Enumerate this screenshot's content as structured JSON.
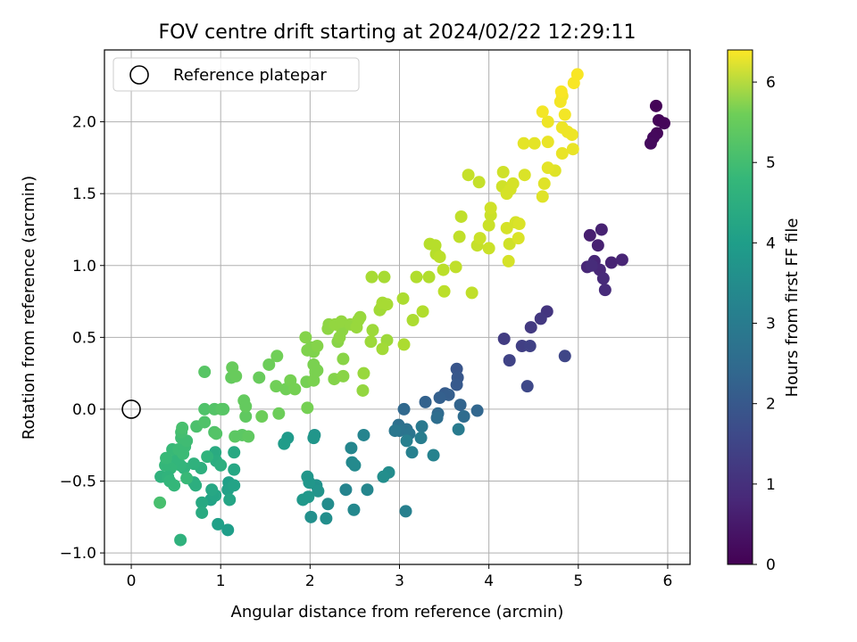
{
  "chart_data": {
    "type": "scatter",
    "title": "FOV centre drift starting at 2024/02/22 12:29:11",
    "xlabel": "Angular distance from reference (arcmin)",
    "ylabel": "Rotation from reference (arcmin)",
    "xlim": [
      -0.3,
      6.25
    ],
    "ylim": [
      -1.08,
      2.5
    ],
    "xticks": [
      0,
      1,
      2,
      3,
      4,
      5,
      6
    ],
    "xtick_labels": [
      "0",
      "1",
      "2",
      "3",
      "4",
      "5",
      "6"
    ],
    "yticks": [
      -1.0,
      -0.5,
      0.0,
      0.5,
      1.0,
      1.5,
      2.0
    ],
    "ytick_labels": [
      "−1.0",
      "−0.5",
      "0.0",
      "0.5",
      "1.0",
      "1.5",
      "2.0"
    ],
    "grid": true,
    "legend": {
      "position": "upper-left",
      "label": "Reference platepar"
    },
    "reference_point": {
      "x": 0,
      "y": 0
    },
    "colorbar": {
      "label": "Hours from first FF file",
      "range": [
        0,
        6.4
      ],
      "ticks": [
        0,
        1,
        2,
        3,
        4,
        5,
        6
      ],
      "tick_labels": [
        "0",
        "1",
        "2",
        "3",
        "4",
        "5",
        "6"
      ],
      "colormap": "viridis"
    },
    "points": [
      {
        "x": 5.87,
        "y": 2.11,
        "c": 0.05
      },
      {
        "x": 5.9,
        "y": 2.01,
        "c": 0.08
      },
      {
        "x": 5.96,
        "y": 1.99,
        "c": 0.1
      },
      {
        "x": 5.88,
        "y": 1.92,
        "c": 0.12
      },
      {
        "x": 5.84,
        "y": 1.89,
        "c": 0.15
      },
      {
        "x": 5.81,
        "y": 1.85,
        "c": 0.18
      },
      {
        "x": 5.13,
        "y": 1.21,
        "c": 0.55
      },
      {
        "x": 5.26,
        "y": 1.25,
        "c": 0.6
      },
      {
        "x": 5.22,
        "y": 1.14,
        "c": 0.58
      },
      {
        "x": 5.37,
        "y": 1.02,
        "c": 0.62
      },
      {
        "x": 5.49,
        "y": 1.04,
        "c": 0.65
      },
      {
        "x": 5.18,
        "y": 1.03,
        "c": 0.68
      },
      {
        "x": 5.1,
        "y": 0.99,
        "c": 0.7
      },
      {
        "x": 5.24,
        "y": 0.97,
        "c": 0.72
      },
      {
        "x": 5.28,
        "y": 0.91,
        "c": 0.75
      },
      {
        "x": 5.3,
        "y": 0.83,
        "c": 0.78
      },
      {
        "x": 5.15,
        "y": 1.0,
        "c": 0.8
      },
      {
        "x": 4.65,
        "y": 0.68,
        "c": 1.0
      },
      {
        "x": 4.58,
        "y": 0.63,
        "c": 1.05
      },
      {
        "x": 4.47,
        "y": 0.57,
        "c": 1.1
      },
      {
        "x": 4.17,
        "y": 0.49,
        "c": 1.15
      },
      {
        "x": 4.37,
        "y": 0.44,
        "c": 1.2
      },
      {
        "x": 4.46,
        "y": 0.44,
        "c": 1.25
      },
      {
        "x": 4.23,
        "y": 0.34,
        "c": 1.3
      },
      {
        "x": 4.85,
        "y": 0.37,
        "c": 1.35
      },
      {
        "x": 4.43,
        "y": 0.16,
        "c": 1.4
      },
      {
        "x": 3.64,
        "y": 0.28,
        "c": 1.7
      },
      {
        "x": 3.65,
        "y": 0.22,
        "c": 1.75
      },
      {
        "x": 3.64,
        "y": 0.17,
        "c": 1.8
      },
      {
        "x": 3.51,
        "y": 0.11,
        "c": 1.85
      },
      {
        "x": 3.55,
        "y": 0.1,
        "c": 1.9
      },
      {
        "x": 3.45,
        "y": 0.08,
        "c": 1.95
      },
      {
        "x": 3.29,
        "y": 0.05,
        "c": 2.0
      },
      {
        "x": 3.68,
        "y": 0.03,
        "c": 2.05
      },
      {
        "x": 3.87,
        "y": -0.01,
        "c": 2.1
      },
      {
        "x": 3.05,
        "y": 0.0,
        "c": 2.15
      },
      {
        "x": 3.43,
        "y": -0.03,
        "c": 2.2
      },
      {
        "x": 3.72,
        "y": -0.05,
        "c": 2.25
      },
      {
        "x": 3.42,
        "y": -0.06,
        "c": 2.3
      },
      {
        "x": 2.99,
        "y": -0.11,
        "c": 2.35
      },
      {
        "x": 3.08,
        "y": -0.14,
        "c": 2.4
      },
      {
        "x": 3.0,
        "y": -0.15,
        "c": 2.45
      },
      {
        "x": 3.11,
        "y": -0.17,
        "c": 2.5
      },
      {
        "x": 2.95,
        "y": -0.15,
        "c": 2.55
      },
      {
        "x": 3.25,
        "y": -0.12,
        "c": 2.6
      },
      {
        "x": 3.66,
        "y": -0.14,
        "c": 2.65
      },
      {
        "x": 3.24,
        "y": -0.2,
        "c": 2.7
      },
      {
        "x": 3.08,
        "y": -0.22,
        "c": 2.75
      },
      {
        "x": 3.14,
        "y": -0.3,
        "c": 2.8
      },
      {
        "x": 3.38,
        "y": -0.32,
        "c": 2.85
      },
      {
        "x": 2.6,
        "y": -0.18,
        "c": 2.9
      },
      {
        "x": 2.46,
        "y": -0.27,
        "c": 2.95
      },
      {
        "x": 2.47,
        "y": -0.37,
        "c": 3.0
      },
      {
        "x": 2.5,
        "y": -0.39,
        "c": 3.05
      },
      {
        "x": 2.88,
        "y": -0.44,
        "c": 3.1
      },
      {
        "x": 2.82,
        "y": -0.47,
        "c": 3.15
      },
      {
        "x": 2.4,
        "y": -0.56,
        "c": 2.9
      },
      {
        "x": 2.64,
        "y": -0.56,
        "c": 2.95
      },
      {
        "x": 2.49,
        "y": -0.7,
        "c": 3.0
      },
      {
        "x": 3.07,
        "y": -0.71,
        "c": 2.8
      },
      {
        "x": 2.2,
        "y": -0.66,
        "c": 3.1
      },
      {
        "x": 2.18,
        "y": -0.76,
        "c": 3.15
      },
      {
        "x": 2.01,
        "y": -0.75,
        "c": 3.2
      },
      {
        "x": 2.07,
        "y": -0.53,
        "c": 3.25
      },
      {
        "x": 2.09,
        "y": -0.57,
        "c": 3.3
      },
      {
        "x": 1.97,
        "y": -0.47,
        "c": 3.35
      },
      {
        "x": 1.99,
        "y": -0.51,
        "c": 3.35
      },
      {
        "x": 1.98,
        "y": -0.61,
        "c": 3.4
      },
      {
        "x": 1.92,
        "y": -0.63,
        "c": 3.4
      },
      {
        "x": 2.05,
        "y": -0.18,
        "c": 3.3
      },
      {
        "x": 2.04,
        "y": -0.2,
        "c": 3.35
      },
      {
        "x": 1.75,
        "y": -0.2,
        "c": 3.45
      },
      {
        "x": 1.71,
        "y": -0.24,
        "c": 3.5
      },
      {
        "x": 1.09,
        "y": -0.51,
        "c": 3.6
      },
      {
        "x": 1.08,
        "y": -0.56,
        "c": 3.65
      },
      {
        "x": 1.15,
        "y": -0.53,
        "c": 3.7
      },
      {
        "x": 1.1,
        "y": -0.63,
        "c": 3.75
      },
      {
        "x": 1.15,
        "y": -0.42,
        "c": 3.8
      },
      {
        "x": 1.15,
        "y": -0.3,
        "c": 3.85
      },
      {
        "x": 1.08,
        "y": -0.84,
        "c": 3.55
      },
      {
        "x": 0.97,
        "y": -0.8,
        "c": 3.6
      },
      {
        "x": 0.89,
        "y": -0.63,
        "c": 3.7
      },
      {
        "x": 0.94,
        "y": -0.6,
        "c": 3.75
      },
      {
        "x": 0.9,
        "y": -0.56,
        "c": 3.8
      },
      {
        "x": 0.79,
        "y": -0.65,
        "c": 3.85
      },
      {
        "x": 0.79,
        "y": -0.72,
        "c": 3.9
      },
      {
        "x": 0.7,
        "y": -0.51,
        "c": 3.95
      },
      {
        "x": 0.72,
        "y": -0.53,
        "c": 4.0
      },
      {
        "x": 0.94,
        "y": -0.3,
        "c": 3.9
      },
      {
        "x": 0.95,
        "y": -0.36,
        "c": 3.95
      },
      {
        "x": 1.0,
        "y": -0.39,
        "c": 4.0
      },
      {
        "x": 0.78,
        "y": -0.41,
        "c": 4.05
      },
      {
        "x": 0.7,
        "y": -0.38,
        "c": 4.1
      },
      {
        "x": 0.85,
        "y": -0.33,
        "c": 4.15
      },
      {
        "x": 0.59,
        "y": -0.41,
        "c": 4.15
      },
      {
        "x": 0.55,
        "y": -0.39,
        "c": 4.2
      },
      {
        "x": 0.51,
        "y": -0.35,
        "c": 4.2
      },
      {
        "x": 0.44,
        "y": -0.41,
        "c": 4.25
      },
      {
        "x": 0.38,
        "y": -0.39,
        "c": 4.25
      },
      {
        "x": 0.39,
        "y": -0.34,
        "c": 4.3
      },
      {
        "x": 0.46,
        "y": -0.28,
        "c": 4.3
      },
      {
        "x": 0.53,
        "y": -0.28,
        "c": 4.35
      },
      {
        "x": 0.58,
        "y": -0.31,
        "c": 4.35
      },
      {
        "x": 0.6,
        "y": -0.26,
        "c": 4.35
      },
      {
        "x": 0.56,
        "y": -0.2,
        "c": 4.4
      },
      {
        "x": 0.62,
        "y": -0.22,
        "c": 4.4
      },
      {
        "x": 0.56,
        "y": -0.16,
        "c": 4.45
      },
      {
        "x": 0.57,
        "y": -0.13,
        "c": 4.5
      },
      {
        "x": 0.33,
        "y": -0.47,
        "c": 4.1
      },
      {
        "x": 0.41,
        "y": -0.47,
        "c": 4.15
      },
      {
        "x": 0.43,
        "y": -0.5,
        "c": 4.2
      },
      {
        "x": 0.48,
        "y": -0.53,
        "c": 4.25
      },
      {
        "x": 0.62,
        "y": -0.48,
        "c": 4.3
      },
      {
        "x": 0.55,
        "y": -0.91,
        "c": 4.1
      },
      {
        "x": 0.32,
        "y": -0.65,
        "c": 4.5
      },
      {
        "x": 0.73,
        "y": -0.12,
        "c": 4.55
      },
      {
        "x": 0.82,
        "y": -0.09,
        "c": 4.6
      },
      {
        "x": 0.93,
        "y": -0.16,
        "c": 4.6
      },
      {
        "x": 0.95,
        "y": -0.17,
        "c": 4.65
      },
      {
        "x": 0.82,
        "y": 0.0,
        "c": 4.6
      },
      {
        "x": 0.93,
        "y": 0.0,
        "c": 4.65
      },
      {
        "x": 1.01,
        "y": 0.0,
        "c": 4.7
      },
      {
        "x": 1.03,
        "y": 0.0,
        "c": 4.7
      },
      {
        "x": 0.82,
        "y": 0.26,
        "c": 4.7
      },
      {
        "x": 1.16,
        "y": -0.19,
        "c": 4.75
      },
      {
        "x": 1.24,
        "y": -0.18,
        "c": 4.75
      },
      {
        "x": 1.31,
        "y": -0.19,
        "c": 4.8
      },
      {
        "x": 1.28,
        "y": -0.05,
        "c": 4.8
      },
      {
        "x": 1.26,
        "y": 0.06,
        "c": 4.85
      },
      {
        "x": 1.28,
        "y": 0.02,
        "c": 4.85
      },
      {
        "x": 1.12,
        "y": 0.22,
        "c": 4.85
      },
      {
        "x": 1.13,
        "y": 0.29,
        "c": 4.9
      },
      {
        "x": 1.17,
        "y": 0.23,
        "c": 4.9
      },
      {
        "x": 1.43,
        "y": 0.22,
        "c": 4.9
      },
      {
        "x": 1.46,
        "y": -0.05,
        "c": 4.95
      },
      {
        "x": 1.65,
        "y": -0.03,
        "c": 4.95
      },
      {
        "x": 1.54,
        "y": 0.31,
        "c": 4.95
      },
      {
        "x": 1.63,
        "y": 0.37,
        "c": 5.0
      },
      {
        "x": 1.62,
        "y": 0.16,
        "c": 5.0
      },
      {
        "x": 1.73,
        "y": 0.14,
        "c": 5.0
      },
      {
        "x": 1.78,
        "y": 0.2,
        "c": 5.05
      },
      {
        "x": 1.83,
        "y": 0.14,
        "c": 5.05
      },
      {
        "x": 1.96,
        "y": 0.19,
        "c": 5.05
      },
      {
        "x": 1.97,
        "y": 0.01,
        "c": 5.05
      },
      {
        "x": 2.04,
        "y": 0.2,
        "c": 5.1
      },
      {
        "x": 2.06,
        "y": 0.26,
        "c": 5.1
      },
      {
        "x": 2.04,
        "y": 0.31,
        "c": 5.1
      },
      {
        "x": 2.08,
        "y": 0.27,
        "c": 5.1
      },
      {
        "x": 1.97,
        "y": 0.41,
        "c": 5.15
      },
      {
        "x": 2.01,
        "y": 0.43,
        "c": 5.15
      },
      {
        "x": 2.04,
        "y": 0.4,
        "c": 5.15
      },
      {
        "x": 2.08,
        "y": 0.44,
        "c": 5.2
      },
      {
        "x": 1.95,
        "y": 0.5,
        "c": 5.2
      },
      {
        "x": 2.27,
        "y": 0.21,
        "c": 5.2
      },
      {
        "x": 2.37,
        "y": 0.23,
        "c": 5.25
      },
      {
        "x": 2.37,
        "y": 0.35,
        "c": 5.25
      },
      {
        "x": 2.31,
        "y": 0.47,
        "c": 5.25
      },
      {
        "x": 2.33,
        "y": 0.5,
        "c": 5.3
      },
      {
        "x": 2.36,
        "y": 0.55,
        "c": 5.3
      },
      {
        "x": 2.2,
        "y": 0.56,
        "c": 5.3
      },
      {
        "x": 2.21,
        "y": 0.59,
        "c": 5.3
      },
      {
        "x": 2.28,
        "y": 0.59,
        "c": 5.35
      },
      {
        "x": 2.35,
        "y": 0.61,
        "c": 5.35
      },
      {
        "x": 2.45,
        "y": 0.59,
        "c": 5.35
      },
      {
        "x": 2.52,
        "y": 0.57,
        "c": 5.4
      },
      {
        "x": 2.54,
        "y": 0.62,
        "c": 5.4
      },
      {
        "x": 2.56,
        "y": 0.64,
        "c": 5.4
      },
      {
        "x": 2.6,
        "y": 0.25,
        "c": 5.4
      },
      {
        "x": 2.59,
        "y": 0.13,
        "c": 5.35
      },
      {
        "x": 2.68,
        "y": 0.47,
        "c": 5.45
      },
      {
        "x": 2.7,
        "y": 0.55,
        "c": 5.45
      },
      {
        "x": 2.86,
        "y": 0.48,
        "c": 5.45
      },
      {
        "x": 2.81,
        "y": 0.42,
        "c": 5.5
      },
      {
        "x": 2.78,
        "y": 0.69,
        "c": 5.5
      },
      {
        "x": 2.8,
        "y": 0.71,
        "c": 5.5
      },
      {
        "x": 2.81,
        "y": 0.74,
        "c": 5.55
      },
      {
        "x": 2.86,
        "y": 0.73,
        "c": 5.55
      },
      {
        "x": 2.69,
        "y": 0.92,
        "c": 5.55
      },
      {
        "x": 2.83,
        "y": 0.92,
        "c": 5.55
      },
      {
        "x": 3.04,
        "y": 0.77,
        "c": 5.6
      },
      {
        "x": 3.05,
        "y": 0.45,
        "c": 5.6
      },
      {
        "x": 3.15,
        "y": 0.62,
        "c": 5.6
      },
      {
        "x": 3.26,
        "y": 0.68,
        "c": 5.65
      },
      {
        "x": 3.19,
        "y": 0.92,
        "c": 5.65
      },
      {
        "x": 3.33,
        "y": 0.92,
        "c": 5.65
      },
      {
        "x": 3.34,
        "y": 1.15,
        "c": 5.7
      },
      {
        "x": 3.4,
        "y": 1.14,
        "c": 5.7
      },
      {
        "x": 3.41,
        "y": 1.08,
        "c": 5.7
      },
      {
        "x": 3.45,
        "y": 1.06,
        "c": 5.75
      },
      {
        "x": 3.49,
        "y": 0.97,
        "c": 5.75
      },
      {
        "x": 3.5,
        "y": 0.82,
        "c": 5.75
      },
      {
        "x": 3.63,
        "y": 0.99,
        "c": 5.8
      },
      {
        "x": 3.67,
        "y": 1.2,
        "c": 5.8
      },
      {
        "x": 3.69,
        "y": 1.34,
        "c": 5.8
      },
      {
        "x": 3.81,
        "y": 0.81,
        "c": 5.8
      },
      {
        "x": 3.77,
        "y": 1.63,
        "c": 5.85
      },
      {
        "x": 3.89,
        "y": 1.58,
        "c": 5.85
      },
      {
        "x": 3.87,
        "y": 1.14,
        "c": 5.85
      },
      {
        "x": 3.9,
        "y": 1.19,
        "c": 5.9
      },
      {
        "x": 4.0,
        "y": 1.12,
        "c": 5.9
      },
      {
        "x": 4.0,
        "y": 1.28,
        "c": 5.9
      },
      {
        "x": 4.02,
        "y": 1.35,
        "c": 5.9
      },
      {
        "x": 4.02,
        "y": 1.4,
        "c": 5.95
      },
      {
        "x": 4.16,
        "y": 1.65,
        "c": 5.95
      },
      {
        "x": 4.15,
        "y": 1.55,
        "c": 5.95
      },
      {
        "x": 4.2,
        "y": 1.5,
        "c": 6.0
      },
      {
        "x": 4.24,
        "y": 1.53,
        "c": 6.0
      },
      {
        "x": 4.27,
        "y": 1.57,
        "c": 6.0
      },
      {
        "x": 4.23,
        "y": 1.15,
        "c": 5.95
      },
      {
        "x": 4.22,
        "y": 1.03,
        "c": 6.0
      },
      {
        "x": 4.2,
        "y": 1.26,
        "c": 6.0
      },
      {
        "x": 4.3,
        "y": 1.3,
        "c": 6.0
      },
      {
        "x": 4.34,
        "y": 1.29,
        "c": 6.05
      },
      {
        "x": 4.33,
        "y": 1.19,
        "c": 6.05
      },
      {
        "x": 4.4,
        "y": 1.63,
        "c": 6.05
      },
      {
        "x": 4.62,
        "y": 1.57,
        "c": 6.1
      },
      {
        "x": 4.6,
        "y": 1.48,
        "c": 6.1
      },
      {
        "x": 4.74,
        "y": 1.66,
        "c": 6.1
      },
      {
        "x": 4.66,
        "y": 1.68,
        "c": 6.15
      },
      {
        "x": 4.39,
        "y": 1.85,
        "c": 6.15
      },
      {
        "x": 4.51,
        "y": 1.85,
        "c": 6.15
      },
      {
        "x": 4.66,
        "y": 1.86,
        "c": 6.2
      },
      {
        "x": 4.82,
        "y": 1.78,
        "c": 6.2
      },
      {
        "x": 4.94,
        "y": 1.81,
        "c": 6.2
      },
      {
        "x": 4.82,
        "y": 1.96,
        "c": 6.25
      },
      {
        "x": 4.88,
        "y": 1.93,
        "c": 6.25
      },
      {
        "x": 4.93,
        "y": 1.91,
        "c": 6.25
      },
      {
        "x": 4.66,
        "y": 2.0,
        "c": 6.25
      },
      {
        "x": 4.6,
        "y": 2.07,
        "c": 6.3
      },
      {
        "x": 4.85,
        "y": 2.05,
        "c": 6.3
      },
      {
        "x": 4.8,
        "y": 2.14,
        "c": 6.3
      },
      {
        "x": 4.82,
        "y": 2.18,
        "c": 6.3
      },
      {
        "x": 4.81,
        "y": 2.21,
        "c": 6.35
      },
      {
        "x": 4.95,
        "y": 2.27,
        "c": 6.35
      },
      {
        "x": 4.99,
        "y": 2.33,
        "c": 6.35
      }
    ]
  }
}
